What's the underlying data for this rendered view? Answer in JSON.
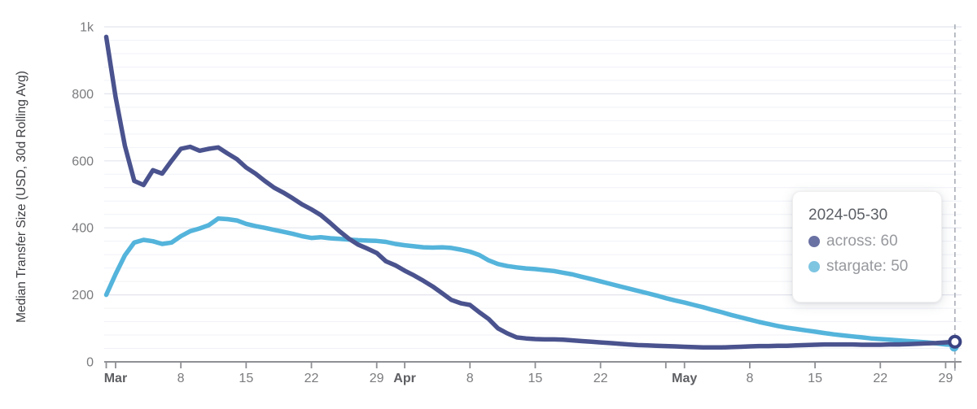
{
  "chart_data": {
    "type": "line",
    "title": "",
    "xlabel": "",
    "ylabel": "Median Transfer Size (USD, 30d Rolling Avg)",
    "ylim": [
      0,
      1000
    ],
    "grid": "horizontal, major every 200 with 4 minor lines (step 40) between",
    "legend_position": "tooltip overlay, right side",
    "x_unit": "day",
    "x_start": "2024-02-29",
    "x_end": "2024-05-30",
    "y_ticks": [
      {
        "v": 0,
        "label": "0"
      },
      {
        "v": 200,
        "label": "200"
      },
      {
        "v": 400,
        "label": "400"
      },
      {
        "v": 600,
        "label": "600"
      },
      {
        "v": 800,
        "label": "800"
      },
      {
        "v": 1000,
        "label": "1k"
      }
    ],
    "y_minor_step": 40,
    "x_ticks": [
      {
        "day": 0,
        "label": "",
        "bold": false
      },
      {
        "day": 1,
        "label": "Mar",
        "bold": true
      },
      {
        "day": 8,
        "label": "8",
        "bold": false
      },
      {
        "day": 15,
        "label": "15",
        "bold": false
      },
      {
        "day": 22,
        "label": "22",
        "bold": false
      },
      {
        "day": 29,
        "label": "29",
        "bold": false
      },
      {
        "day": 32,
        "label": "Apr",
        "bold": true
      },
      {
        "day": 39,
        "label": "8",
        "bold": false
      },
      {
        "day": 46,
        "label": "15",
        "bold": false
      },
      {
        "day": 53,
        "label": "22",
        "bold": false
      },
      {
        "day": 60,
        "label": "",
        "bold": false
      },
      {
        "day": 62,
        "label": "May",
        "bold": true
      },
      {
        "day": 69,
        "label": "8",
        "bold": false
      },
      {
        "day": 76,
        "label": "15",
        "bold": false
      },
      {
        "day": 83,
        "label": "22",
        "bold": false
      },
      {
        "day": 90,
        "label": "29",
        "bold": false
      },
      {
        "day": 91,
        "label": "",
        "bold": false
      }
    ],
    "series": [
      {
        "name": "stargate",
        "color": "#54B4DB",
        "values": [
          200,
          262,
          318,
          356,
          364,
          360,
          352,
          356,
          375,
          390,
          398,
          408,
          428,
          426,
          422,
          412,
          405,
          400,
          394,
          388,
          382,
          375,
          370,
          372,
          369,
          367,
          365,
          363,
          362,
          361,
          358,
          352,
          348,
          345,
          342,
          341,
          342,
          340,
          335,
          329,
          319,
          303,
          292,
          286,
          282,
          279,
          277,
          274,
          271,
          266,
          261,
          254,
          247,
          240,
          233,
          226,
          219,
          212,
          205,
          198,
          190,
          183,
          177,
          170,
          163,
          155,
          148,
          140,
          133,
          126,
          119,
          113,
          107,
          102,
          98,
          94,
          90,
          86,
          82,
          79,
          76,
          73,
          70,
          68,
          66,
          64,
          62,
          60,
          58,
          55,
          52,
          50
        ]
      },
      {
        "name": "across",
        "color": "#4A538E",
        "values": [
          970,
          790,
          645,
          540,
          528,
          572,
          562,
          600,
          636,
          642,
          630,
          636,
          640,
          622,
          605,
          580,
          562,
          540,
          520,
          505,
          488,
          470,
          455,
          438,
          415,
          390,
          368,
          350,
          338,
          325,
          300,
          288,
          272,
          258,
          242,
          225,
          205,
          185,
          175,
          170,
          148,
          128,
          100,
          85,
          73,
          70,
          68,
          67,
          67,
          66,
          64,
          62,
          60,
          58,
          56,
          54,
          52,
          50,
          49,
          48,
          47,
          46,
          45,
          44,
          43,
          43,
          43,
          44,
          45,
          46,
          47,
          47,
          48,
          48,
          49,
          50,
          51,
          52,
          52,
          52,
          52,
          51,
          51,
          51,
          52,
          52,
          53,
          54,
          55,
          56,
          58,
          60
        ]
      }
    ],
    "crosshair": {
      "day": 91,
      "date": "2024-05-30"
    },
    "tooltip": {
      "title": "2024-05-30",
      "rows": [
        {
          "series": "across",
          "value": 60,
          "label": "across: 60",
          "dot_color": "#6A71A3"
        },
        {
          "series": "stargate",
          "value": 50,
          "label": "stargate: 50",
          "dot_color": "#7EC5E2"
        }
      ]
    },
    "style": {
      "grid_major": "#E2E5EE",
      "grid_minor": "#F0F2F8",
      "axis_color": "#8F9094",
      "tick_label_color": "#7A7B7E",
      "month_label_color": "#5E5F63",
      "ylabel_color": "#3D3E42",
      "crosshair_color": "#A9AEB6",
      "marker_ring_color": "#3A4382",
      "background": "#FFFFFF"
    }
  }
}
